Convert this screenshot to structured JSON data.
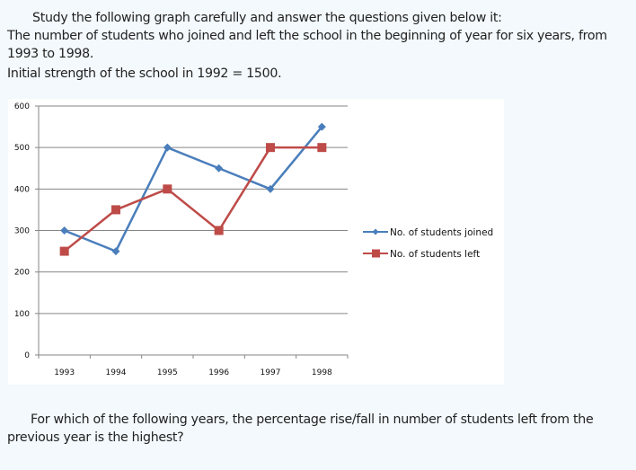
{
  "intro": {
    "line1": "Study the following graph carefully and answer the questions given below it:",
    "line2": "The number of students who joined and left the school in the beginning of year for six years, from",
    "line3": "1993 to 1998.",
    "line4": "Initial strength of the school in 1992 = 1500."
  },
  "question": {
    "line1": "For which of the following years, the percentage rise/fall in number of students left from the",
    "line2": "previous year is the highest?"
  },
  "chart_data": {
    "type": "line",
    "title": "",
    "xlabel": "",
    "ylabel": "",
    "categories": [
      "1993",
      "1994",
      "1995",
      "1996",
      "1997",
      "1998"
    ],
    "ylim": [
      0,
      600
    ],
    "yticks": [
      0,
      100,
      200,
      300,
      400,
      500,
      600
    ],
    "ytick_labels": [
      "0",
      "100",
      "200",
      "300",
      "400",
      "500",
      "600"
    ],
    "grid": true,
    "legend_position": "right",
    "series": [
      {
        "name": "No. of students joined",
        "values": [
          300,
          250,
          500,
          450,
          400,
          550
        ],
        "color": "#4a7ebb",
        "marker": "diamond"
      },
      {
        "name": "No. of students left",
        "values": [
          250,
          350,
          400,
          300,
          500,
          500
        ],
        "color": "#be4b48",
        "marker": "square"
      }
    ]
  }
}
